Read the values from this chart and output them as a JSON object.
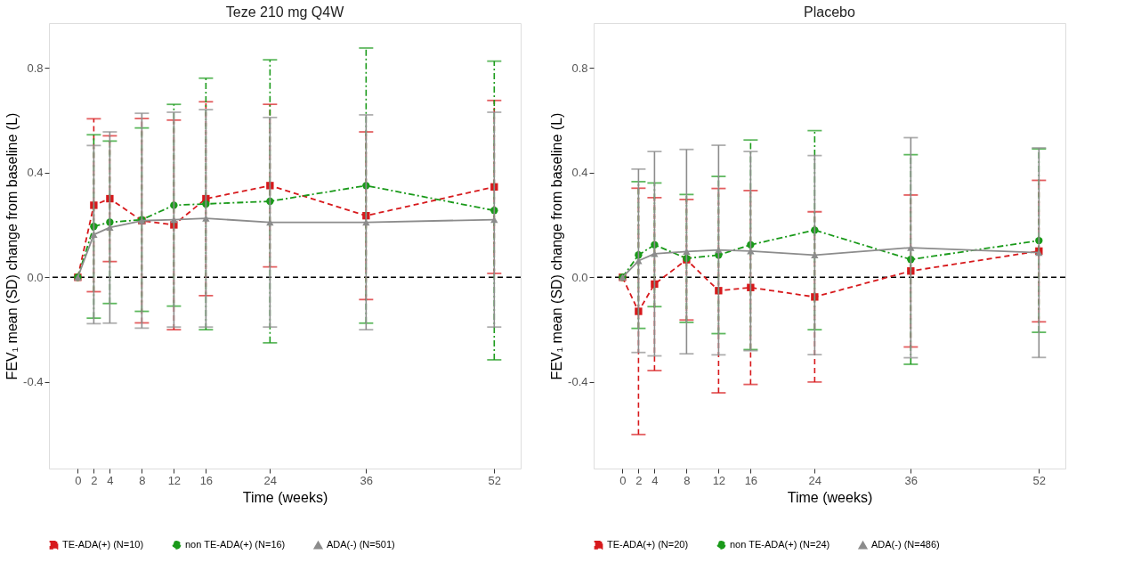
{
  "chart_data": [
    {
      "type": "line",
      "title": "Teze 210 mg Q4W",
      "xlabel": "Time (weeks)",
      "ylabel": "FEV₁ mean (SD) change from baseline (L)",
      "x": [
        0,
        2,
        4,
        8,
        12,
        16,
        24,
        36,
        52
      ],
      "xlim": [
        -3.6,
        55.3
      ],
      "xticks": [
        0,
        2,
        4,
        8,
        12,
        16,
        24,
        36,
        52
      ],
      "ylim": [
        -0.73,
        0.97
      ],
      "yticks": [
        {
          "value": -0.4,
          "label": "-0.4"
        },
        {
          "value": 0,
          "label": "0.0"
        },
        {
          "value": 0.4,
          "label": "0.4"
        },
        {
          "value": 0.8,
          "label": "0.8"
        }
      ],
      "grid": false,
      "legend": "bottom",
      "ref_lines": [
        {
          "axis": "y",
          "value": 0,
          "color": "#000000",
          "line_style": "dashed"
        }
      ],
      "series": [
        {
          "name": "TE-ADA(+) (N=10)",
          "color": "#d7191c",
          "marker": "square",
          "line_style": "dashed",
          "values": [
            0,
            0.275,
            0.3,
            0.216,
            0.2,
            0.3,
            0.35,
            0.235,
            0.345
          ],
          "errors": [
            null,
            0.33,
            0.24,
            0.39,
            0.4,
            0.37,
            0.31,
            0.32,
            0.33
          ]
        },
        {
          "name": "non TE-ADA(+) (N=16)",
          "color": "#1a9a1a",
          "marker": "circle",
          "line_style": "dashdot",
          "values": [
            0,
            0.194,
            0.21,
            0.22,
            0.275,
            0.28,
            0.29,
            0.35,
            0.255
          ],
          "errors": [
            null,
            0.35,
            0.31,
            0.35,
            0.385,
            0.48,
            0.54,
            0.525,
            0.57
          ]
        },
        {
          "name": "ADA(-) (N=501)",
          "color": "#8c8c8c",
          "marker": "triangle",
          "line_style": "solid",
          "values": [
            0,
            0.163,
            0.19,
            0.216,
            0.22,
            0.225,
            0.21,
            0.21,
            0.22
          ],
          "errors": [
            null,
            0.34,
            0.365,
            0.41,
            0.41,
            0.415,
            0.4,
            0.41,
            0.41
          ]
        }
      ]
    },
    {
      "type": "line",
      "title": "Placebo",
      "xlabel": "Time (weeks)",
      "ylabel": "FEV₁ mean (SD) change from baseline (L)",
      "x": [
        0,
        2,
        4,
        8,
        12,
        16,
        24,
        36,
        52
      ],
      "xlim": [
        -3.6,
        55.3
      ],
      "xticks": [
        0,
        2,
        4,
        8,
        12,
        16,
        24,
        36,
        52
      ],
      "ylim": [
        -0.73,
        0.97
      ],
      "yticks": [
        {
          "value": -0.4,
          "label": "-0.4"
        },
        {
          "value": 0,
          "label": "0.0"
        },
        {
          "value": 0.4,
          "label": "0.4"
        },
        {
          "value": 0.8,
          "label": "0.8"
        }
      ],
      "grid": false,
      "legend": "bottom",
      "ref_lines": [
        {
          "axis": "y",
          "value": 0,
          "color": "#000000",
          "line_style": "dashed"
        }
      ],
      "series": [
        {
          "name": "TE-ADA(+) (N=20)",
          "color": "#d7191c",
          "marker": "square",
          "line_style": "dashed",
          "values": [
            0,
            -0.13,
            -0.026,
            0.067,
            -0.051,
            -0.039,
            -0.075,
            0.024,
            0.1
          ],
          "errors": [
            null,
            0.47,
            0.33,
            0.23,
            0.39,
            0.37,
            0.325,
            0.29,
            0.27
          ]
        },
        {
          "name": "non TE-ADA(+) (N=24)",
          "color": "#1a9a1a",
          "marker": "circle",
          "line_style": "dashdot",
          "values": [
            0,
            0.085,
            0.124,
            0.072,
            0.085,
            0.124,
            0.18,
            0.068,
            0.14
          ],
          "errors": [
            null,
            0.28,
            0.236,
            0.244,
            0.3,
            0.4,
            0.38,
            0.4,
            0.35
          ]
        },
        {
          "name": "ADA(-) (N=486)",
          "color": "#8c8c8c",
          "marker": "triangle",
          "line_style": "solid",
          "values": [
            0,
            0.063,
            0.09,
            0.098,
            0.104,
            0.1,
            0.085,
            0.113,
            0.094
          ],
          "errors": [
            null,
            0.35,
            0.39,
            0.39,
            0.4,
            0.38,
            0.38,
            0.42,
            0.4
          ]
        }
      ]
    }
  ]
}
